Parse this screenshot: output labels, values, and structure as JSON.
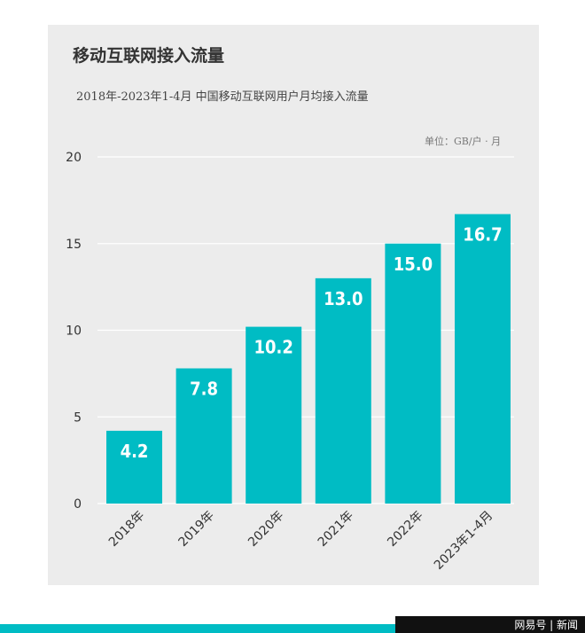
{
  "title": "移动互联网接入流量",
  "subtitle": "2018年-2023年1-4月 中国移动互联网用户月均接入流量",
  "unit": "单位：GB/户 · 月",
  "watermark": "网易号 | 新闻",
  "colors": {
    "bar": "#00bcc4",
    "label": "#ffffff",
    "card": "#ececec",
    "accent": "#00bcc4"
  },
  "chart_data": {
    "type": "bar",
    "categories": [
      "2018年",
      "2019年",
      "2020年",
      "2021年",
      "2022年",
      "2023年1-4月"
    ],
    "values": [
      4.2,
      7.8,
      10.2,
      13.0,
      15.0,
      16.7
    ],
    "value_labels": [
      "4.2",
      "7.8",
      "10.2",
      "13.0",
      "15.0",
      "16.7"
    ],
    "yticks": [
      "0",
      "5",
      "10",
      "15",
      "20"
    ],
    "ylim": [
      0,
      20
    ],
    "grid": true,
    "legend": "none",
    "title": "移动互联网接入流量",
    "xlabel": "",
    "ylabel": ""
  }
}
